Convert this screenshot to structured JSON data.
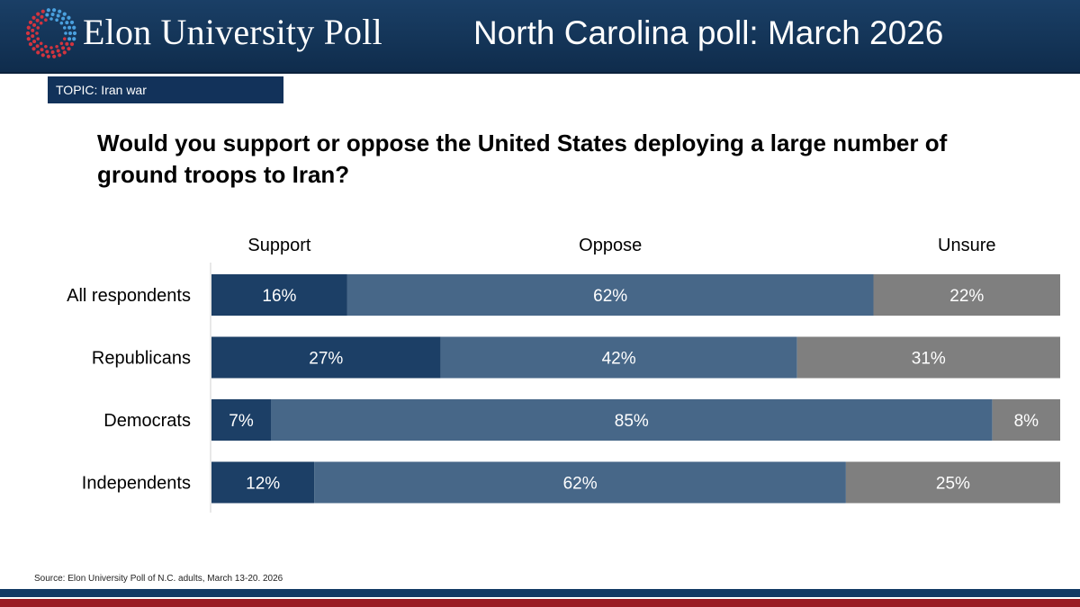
{
  "header": {
    "logo_text": "Elon University Poll",
    "title": "North Carolina poll: March 2026"
  },
  "topic": "TOPIC: Iran war",
  "question": "Would you support or oppose the United States deploying a large number of ground troops to Iran?",
  "source": "Source: Elon University Poll of N.C. adults, March 13-20. 2026",
  "colors": {
    "header_bg": "#15365a",
    "support": "#1c3f66",
    "oppose": "#476788",
    "unsure": "#7f7f7f",
    "footer_blue": "#123a64",
    "footer_red": "#9a1b23"
  },
  "icons": [
    "elon-poll-logo-icon"
  ],
  "chart_data": {
    "type": "bar",
    "orientation": "horizontal",
    "stacked": true,
    "categories": [
      "All respondents",
      "Republicans",
      "Democrats",
      "Independents"
    ],
    "series": [
      {
        "name": "Support",
        "values": [
          16,
          27,
          7,
          12
        ]
      },
      {
        "name": "Oppose",
        "values": [
          62,
          42,
          85,
          62
        ]
      },
      {
        "name": "Unsure",
        "values": [
          22,
          31,
          8,
          25
        ]
      }
    ],
    "value_suffix": "%",
    "legend_position": "top",
    "title": "",
    "xlabel": "",
    "ylabel": ""
  }
}
